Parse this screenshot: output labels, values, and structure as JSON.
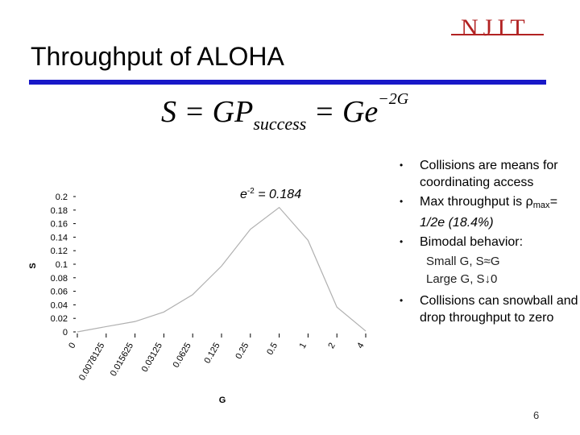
{
  "logo": {
    "text": "NJIT"
  },
  "slide": {
    "title": "Throughput of ALOHA",
    "formula": {
      "lhs": "S",
      "eq1": "GP",
      "sub": "success",
      "eq2": "Ge",
      "sup": "−2G"
    },
    "annotation": {
      "base": "e",
      "sup": "-2",
      "rest": " = 0.184"
    },
    "page_number": "6"
  },
  "bullets": [
    {
      "text": "Collisions are means for coordinating access"
    },
    {
      "text_pre": "Max throughput is ",
      "rho": "ρ",
      "rho_sub": "max",
      "text_post": "= 1/2e (18.4%)"
    },
    {
      "text": "Bimodal behavior:"
    },
    {
      "sub1": "Small G, S≈G"
    },
    {
      "sub2": "Large G, S↓0"
    },
    {
      "text": "Collisions can snowball and drop throughput to zero"
    }
  ],
  "chart_data": {
    "type": "line",
    "xlabel": "G",
    "ylabel": "S",
    "x": [
      "0",
      "0.0078125",
      "0.015625",
      "0.03125",
      "0.0625",
      "0.125",
      "0.25",
      "0.5",
      "1",
      "2",
      "4"
    ],
    "series": [
      {
        "values": [
          0,
          0.0078,
          0.0153,
          0.0294,
          0.0551,
          0.0973,
          0.1516,
          0.1839,
          0.1353,
          0.0366,
          0.0013
        ]
      }
    ],
    "y_ticks": [
      "0",
      "0.02",
      "0.04",
      "0.06",
      "0.08",
      "0.1",
      "0.12",
      "0.14",
      "0.16",
      "0.18",
      "0.2"
    ],
    "ylim": [
      0,
      0.2
    ],
    "grid": false,
    "colors": {
      "line": "#b0b0b0"
    }
  }
}
